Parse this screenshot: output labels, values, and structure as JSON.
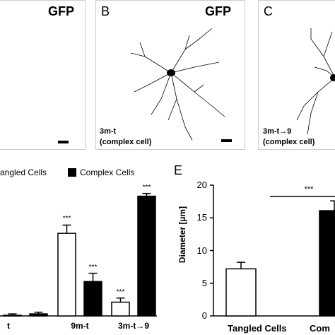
{
  "panels_top": {
    "a": {
      "label": "",
      "tag": "GFP"
    },
    "b": {
      "label": "B",
      "tag": "GFP",
      "caption_line1": "3m-t",
      "caption_line2": "(complex cell)"
    },
    "c": {
      "label": "C",
      "caption_line1": "3m-t→9",
      "caption_line2": "(complex cell)"
    }
  },
  "legend": {
    "item1": "angled Cells",
    "item2": "Complex Cells"
  },
  "chart_d": {
    "type": "bar",
    "categories": [
      "t",
      "9m-t",
      "3m-t→9"
    ],
    "series": [
      {
        "name": "angled Cells",
        "values": [
          0.5,
          60,
          10
        ],
        "errors": [
          1.0,
          6,
          3
        ]
      },
      {
        "name": "Complex Cells",
        "values": [
          1.5,
          25,
          87
        ],
        "errors": [
          1.2,
          6,
          2
        ]
      }
    ],
    "significance": [
      "",
      "***",
      "***"
    ],
    "significance_series": [
      [
        "",
        ""
      ],
      [
        "***",
        "***"
      ],
      [
        "***",
        "***"
      ]
    ],
    "ylim": [
      0,
      95
    ]
  },
  "chart_e": {
    "label": "E",
    "type": "bar",
    "categories": [
      "Tangled Cells",
      "Com"
    ],
    "values": [
      7.2,
      16.1
    ],
    "errors": [
      1.0,
      1.5
    ],
    "ylabel": "Diameter [µm]",
    "yticks": [
      "0",
      "5",
      "10",
      "15",
      "20"
    ],
    "ylim": [
      0,
      20
    ],
    "significance": "***",
    "colors": [
      "#ffffff",
      "#000000"
    ]
  }
}
